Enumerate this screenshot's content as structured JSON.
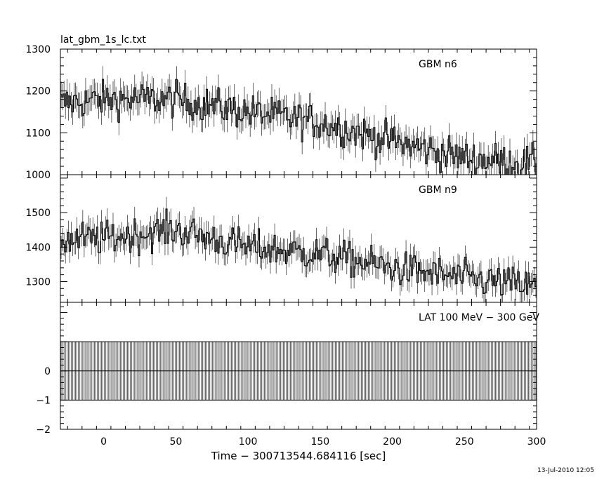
{
  "chart_data": {
    "type": "line",
    "title": "lat_gbm_1s_lc.txt",
    "xlabel": "Time − 300713544.684116 [sec]",
    "x_range": [
      -30,
      300
    ],
    "x_ticks": [
      "0",
      "50",
      "100",
      "150",
      "200",
      "250",
      "300"
    ],
    "x_tick_values": [
      0,
      50,
      100,
      150,
      200,
      250,
      300
    ],
    "timestamp": "13-Jul-2010 12:05",
    "bin_width_sec": 1,
    "panels": [
      {
        "label": "GBM n6",
        "ylim": [
          1000,
          1300
        ],
        "y_ticks": [
          "1000",
          "1100",
          "1200",
          "1300"
        ],
        "y_tick_values": [
          1000,
          1100,
          1200,
          1300
        ],
        "series": {
          "description_points": [
            {
              "x": -30,
              "y": 1170
            },
            {
              "x": 0,
              "y": 1180
            },
            {
              "x": 50,
              "y": 1180
            },
            {
              "x": 100,
              "y": 1150
            },
            {
              "x": 150,
              "y": 1125
            },
            {
              "x": 200,
              "y": 1080
            },
            {
              "x": 250,
              "y": 1040
            },
            {
              "x": 300,
              "y": 1025
            }
          ],
          "noise": 38
        }
      },
      {
        "label": "GBM n9",
        "ylim": [
          1240,
          1610
        ],
        "y_ticks": [
          "1300",
          "1400",
          "1500"
        ],
        "y_tick_values": [
          1300,
          1400,
          1500
        ],
        "series": {
          "description_points": [
            {
              "x": -30,
              "y": 1420
            },
            {
              "x": 0,
              "y": 1425
            },
            {
              "x": 50,
              "y": 1450
            },
            {
              "x": 100,
              "y": 1400
            },
            {
              "x": 150,
              "y": 1380
            },
            {
              "x": 200,
              "y": 1340
            },
            {
              "x": 250,
              "y": 1310
            },
            {
              "x": 300,
              "y": 1285
            }
          ],
          "noise": 45
        }
      },
      {
        "label": "LAT 100 MeV − 300 GeV",
        "ylim": [
          -2,
          2.35
        ],
        "y_ticks": [
          "−2",
          "−1",
          "0"
        ],
        "y_tick_values": [
          -2,
          -1,
          0
        ],
        "series": {
          "constant_value": 0,
          "error_bar": [
            -1,
            1
          ]
        }
      }
    ]
  }
}
